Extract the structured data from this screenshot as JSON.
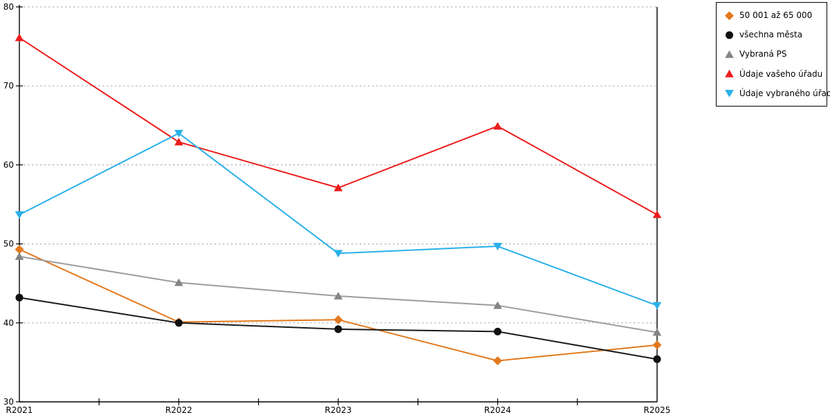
{
  "chart_data": {
    "type": "line",
    "title": "",
    "xlabel": "",
    "ylabel": "",
    "categories": [
      "R2021",
      "R2022",
      "R2023",
      "R2024",
      "R2025"
    ],
    "ylim": [
      30,
      80
    ],
    "yticks": [
      30,
      40,
      50,
      60,
      70,
      80
    ],
    "grid": "horizontal dashed gridlines at y=40..80, solid black axis frame left/bottom/right",
    "legend_position": "outside-top-right boxed",
    "series": [
      {
        "name": "50 001 až 65 000",
        "marker": "diamond",
        "color": "#E2791D",
        "line_color": "#E2791D",
        "values": [
          49.3,
          40.1,
          40.4,
          35.2,
          37.2
        ]
      },
      {
        "name": "všechna města",
        "marker": "circle",
        "color": "#111111",
        "line_color": "#1A1A1A",
        "values": [
          43.2,
          40.0,
          39.2,
          38.9,
          35.4
        ]
      },
      {
        "name": "Vybraná PS",
        "marker": "triangle-up",
        "color": "#848484",
        "line_color": "#9C9C9C",
        "values": [
          48.4,
          45.1,
          43.4,
          42.2,
          38.8
        ]
      },
      {
        "name": "Údaje vašeho úřadu",
        "marker": "triangle-up",
        "color": "#ED1C1C",
        "line_color": "#ED1C1C",
        "values": [
          76.1,
          62.9,
          57.1,
          64.9,
          53.7
        ]
      },
      {
        "name": "Údaje vybraného úřadu",
        "marker": "triangle-down",
        "color": "#29B0E8",
        "line_color": "#29B0E8",
        "values": [
          53.7,
          64.0,
          48.8,
          49.7,
          42.2
        ]
      }
    ],
    "colors": {
      "gridline": "#B3B3B3",
      "axis": "#000000",
      "background": "#FFFFFF"
    }
  }
}
